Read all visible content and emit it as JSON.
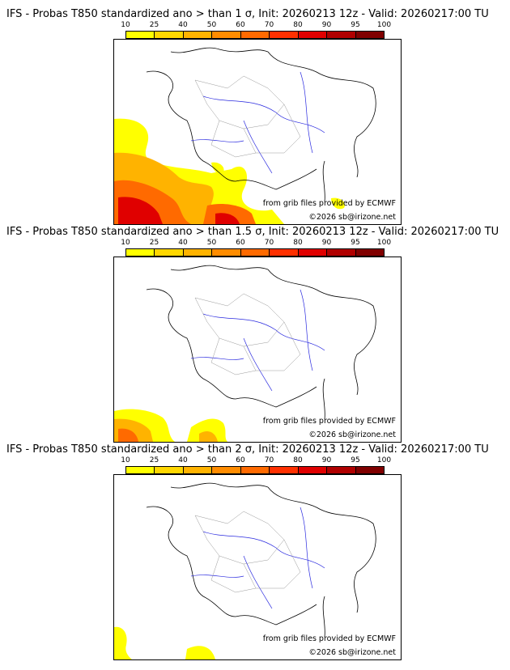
{
  "colorbar": {
    "ticks": [
      "10",
      "25",
      "40",
      "50",
      "60",
      "70",
      "80",
      "90",
      "95",
      "100"
    ],
    "colors": [
      "#ffff00",
      "#ffd700",
      "#ffb300",
      "#ff8c00",
      "#ff6a00",
      "#ff3000",
      "#e00000",
      "#b00000",
      "#800000"
    ]
  },
  "panels": [
    {
      "title": "IFS - Probas T850  standardized ano > than 1 σ, Init: 20260213 12z - Valid: 20260217:00 TU",
      "credit_source": "from grib files provided by ECMWF",
      "credit_copyright": "©2026 sb@irizone.net"
    },
    {
      "title": "IFS - Probas T850  standardized ano > than 1.5 σ, Init: 20260213 12z - Valid: 20260217:00 TU",
      "credit_source": "from grib files provided by ECMWF",
      "credit_copyright": "©2026 sb@irizone.net"
    },
    {
      "title": "IFS - Probas T850  standardized ano > than 2 σ, Init: 20260213 12z - Valid: 20260217:00 TU",
      "credit_source": "from grib files provided by ECMWF",
      "credit_copyright": "©2026 sb@irizone.net"
    }
  ]
}
